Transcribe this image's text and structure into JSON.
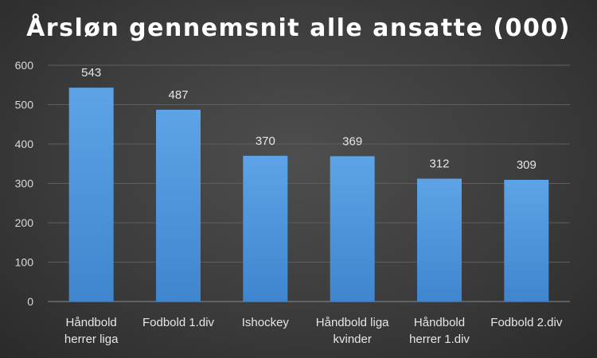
{
  "chart_data": {
    "type": "bar",
    "title": "Årsløn gennemsnit alle ansatte (000)",
    "categories": [
      [
        "Håndbold",
        "herrer liga"
      ],
      [
        "Fodbold 1.div"
      ],
      [
        "Ishockey"
      ],
      [
        "Håndbold liga",
        "kvinder"
      ],
      [
        "Håndbold",
        "herrer 1.div"
      ],
      [
        "Fodbold 2.div"
      ]
    ],
    "values": [
      543,
      487,
      370,
      369,
      312,
      309
    ],
    "data_labels": [
      "543",
      "487",
      "370",
      "369",
      "312",
      "309"
    ],
    "ylim": [
      0,
      600
    ],
    "yticks": [
      "0",
      "100",
      "200",
      "300",
      "400",
      "500",
      "600"
    ],
    "xlabel": "",
    "ylabel": "",
    "grid": true,
    "bar_color_top": "#5da3e6",
    "bar_color_bottom": "#3f86cf"
  }
}
